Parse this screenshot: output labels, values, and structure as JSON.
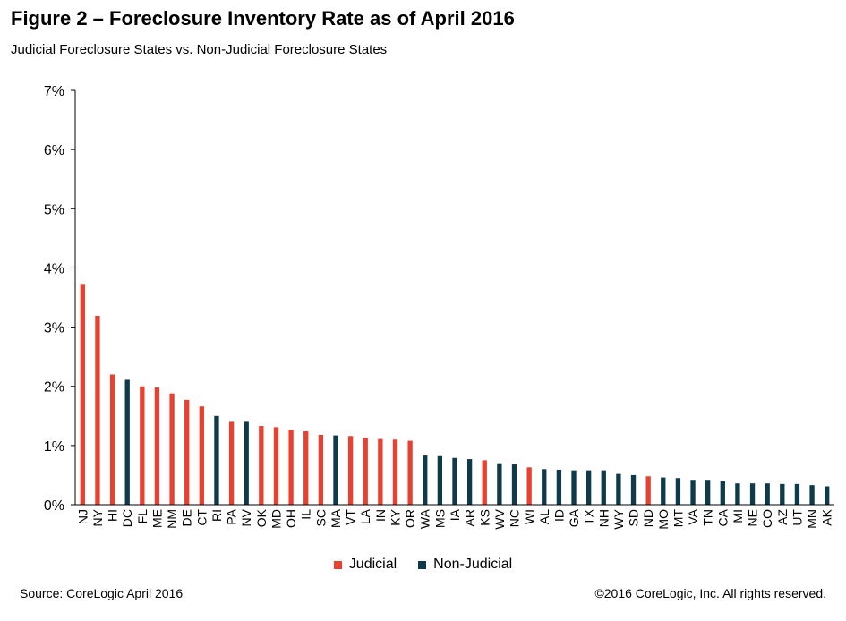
{
  "header": {
    "title": "Figure 2 – Foreclosure Inventory Rate as of April 2016",
    "subtitle": "Judicial Foreclosure States vs. Non-Judicial Foreclosure States"
  },
  "footer": {
    "source": "Source: CoreLogic  April 2016",
    "copyright": "©2016 CoreLogic, Inc.  All rights reserved."
  },
  "colors": {
    "judicial": "#e8412f",
    "non_judicial": "#0e3a4a",
    "axis": "#000000"
  },
  "chart_data": {
    "type": "bar",
    "title": "Figure 2 – Foreclosure Inventory Rate as of April 2016",
    "subtitle": "Judicial Foreclosure States vs. Non-Judicial Foreclosure States",
    "xlabel": "",
    "ylabel": "",
    "ylim": [
      0,
      7
    ],
    "y_ticks": [
      "0%",
      "1%",
      "2%",
      "3%",
      "4%",
      "5%",
      "6%",
      "7%"
    ],
    "y_tick_values": [
      0,
      1,
      2,
      3,
      4,
      5,
      6,
      7
    ],
    "grid": false,
    "legend_position": "bottom",
    "legend": [
      {
        "name": "Judicial",
        "color": "#e8412f"
      },
      {
        "name": "Non-Judicial",
        "color": "#0e3a4a"
      }
    ],
    "categories": [
      "NJ",
      "NY",
      "HI",
      "DC",
      "FL",
      "ME",
      "NM",
      "DE",
      "CT",
      "RI",
      "PA",
      "NV",
      "OK",
      "MD",
      "OH",
      "IL",
      "SC",
      "MA",
      "VT",
      "LA",
      "IN",
      "KY",
      "OR",
      "WA",
      "MS",
      "IA",
      "AR",
      "KS",
      "WV",
      "NC",
      "WI",
      "AL",
      "ID",
      "GA",
      "TX",
      "NH",
      "WY",
      "SD",
      "ND",
      "MO",
      "MT",
      "VA",
      "TN",
      "CA",
      "MI",
      "NE",
      "CO",
      "AZ",
      "UT",
      "MN",
      "AK"
    ],
    "values": [
      3.73,
      3.19,
      2.2,
      2.11,
      2.0,
      1.98,
      1.88,
      1.77,
      1.66,
      1.5,
      1.4,
      1.4,
      1.33,
      1.31,
      1.27,
      1.24,
      1.18,
      1.17,
      1.16,
      1.13,
      1.11,
      1.1,
      1.08,
      0.83,
      0.82,
      0.79,
      0.77,
      0.75,
      0.7,
      0.68,
      0.63,
      0.6,
      0.59,
      0.58,
      0.58,
      0.58,
      0.52,
      0.5,
      0.48,
      0.46,
      0.45,
      0.42,
      0.42,
      0.4,
      0.36,
      0.36,
      0.36,
      0.35,
      0.35,
      0.33,
      0.31
    ],
    "series_type": [
      "Judicial",
      "Judicial",
      "Judicial",
      "Non-Judicial",
      "Judicial",
      "Judicial",
      "Judicial",
      "Judicial",
      "Judicial",
      "Non-Judicial",
      "Judicial",
      "Non-Judicial",
      "Judicial",
      "Judicial",
      "Judicial",
      "Judicial",
      "Judicial",
      "Non-Judicial",
      "Judicial",
      "Judicial",
      "Judicial",
      "Judicial",
      "Judicial",
      "Non-Judicial",
      "Non-Judicial",
      "Non-Judicial",
      "Non-Judicial",
      "Judicial",
      "Non-Judicial",
      "Non-Judicial",
      "Judicial",
      "Non-Judicial",
      "Non-Judicial",
      "Non-Judicial",
      "Non-Judicial",
      "Non-Judicial",
      "Non-Judicial",
      "Non-Judicial",
      "Judicial",
      "Non-Judicial",
      "Non-Judicial",
      "Non-Judicial",
      "Non-Judicial",
      "Non-Judicial",
      "Non-Judicial",
      "Non-Judicial",
      "Non-Judicial",
      "Non-Judicial",
      "Non-Judicial",
      "Non-Judicial",
      "Non-Judicial"
    ]
  }
}
